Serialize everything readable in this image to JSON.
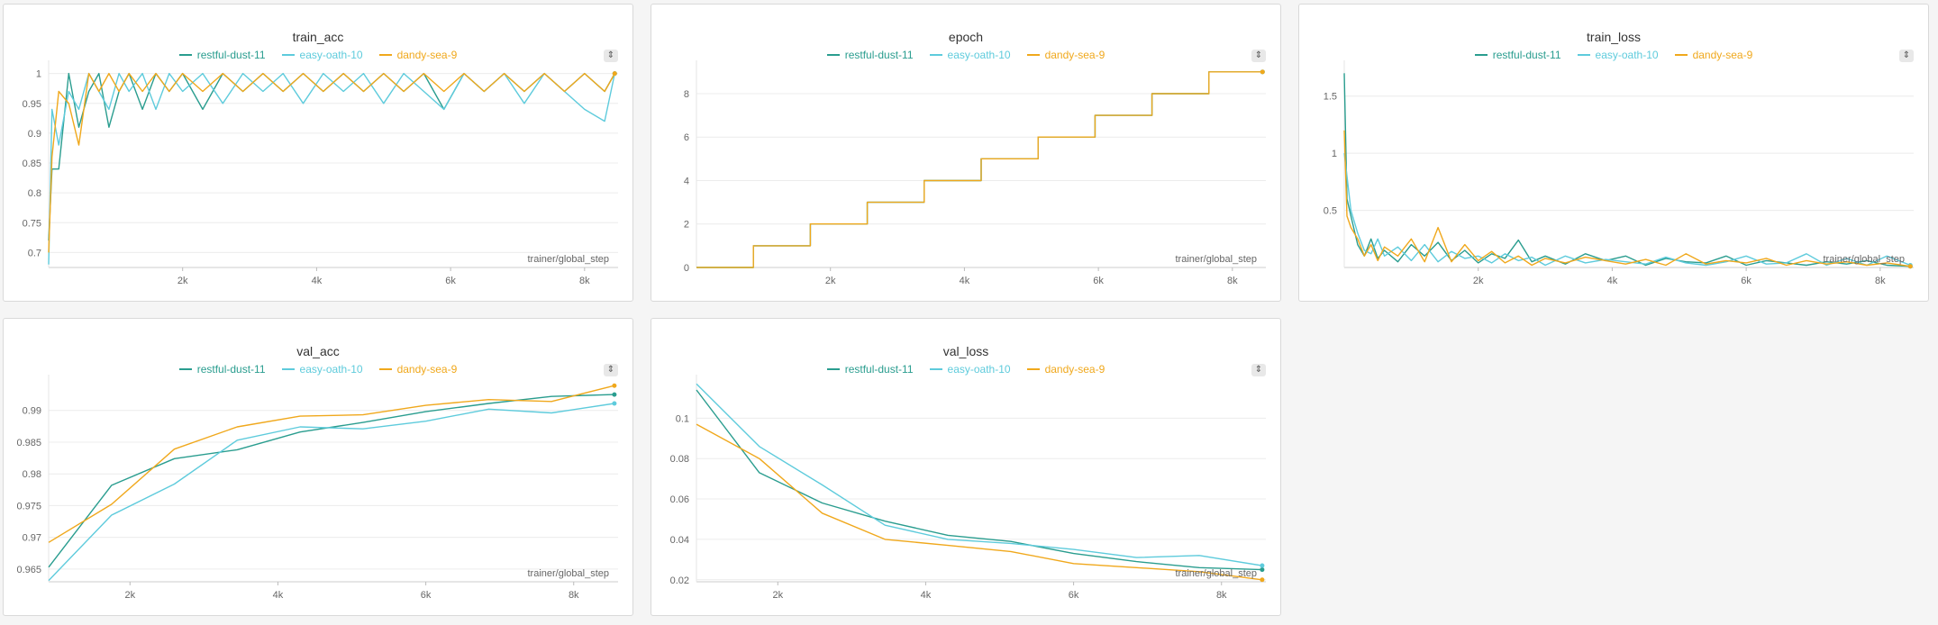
{
  "series_colors": {
    "restful-dust-11": "#2a9d8f",
    "easy-oath-10": "#5ecbdc",
    "dandy-sea-9": "#f0a81c"
  },
  "legend": [
    {
      "name": "restful-dust-11",
      "color": "#2a9d8f"
    },
    {
      "name": "easy-oath-10",
      "color": "#5ecbdc"
    },
    {
      "name": "dandy-sea-9",
      "color": "#f0a81c"
    }
  ],
  "panel_menu_icon": "chevron-updown-icon",
  "chart_data": [
    {
      "type": "line",
      "title": "train_acc",
      "xlabel": "trainer/global_step",
      "ylabel": "",
      "xlim": [
        0,
        8500
      ],
      "ylim": [
        0.675,
        1.01
      ],
      "xticks": [
        2000,
        4000,
        6000,
        8000
      ],
      "xtick_labels": [
        "2k",
        "4k",
        "6k",
        "8k"
      ],
      "yticks": [
        0.7,
        0.75,
        0.8,
        0.85,
        0.9,
        0.95,
        1
      ],
      "ytick_labels": [
        "0.7",
        "0.75",
        "0.8",
        "0.85",
        "0.9",
        "0.95",
        "1"
      ],
      "grid": true,
      "series": [
        {
          "name": "restful-dust-11",
          "x": [
            0,
            50,
            150,
            300,
            450,
            600,
            750,
            900,
            1050,
            1200,
            1400,
            1600,
            1800,
            2000,
            2300,
            2600,
            2900,
            3200,
            3500,
            3800,
            4100,
            4400,
            4700,
            5000,
            5300,
            5600,
            5900,
            6200,
            6500,
            6800,
            7100,
            7400,
            7700,
            8000,
            8300,
            8450
          ],
          "y": [
            0.72,
            0.84,
            0.84,
            1.0,
            0.91,
            0.97,
            1.0,
            0.91,
            0.97,
            1.0,
            0.94,
            1.0,
            0.97,
            1.0,
            0.94,
            1.0,
            0.97,
            1.0,
            0.97,
            1.0,
            0.97,
            1.0,
            0.97,
            1.0,
            0.97,
            1.0,
            0.94,
            1.0,
            0.97,
            1.0,
            0.97,
            1.0,
            0.97,
            1.0,
            0.97,
            1.0
          ]
        },
        {
          "name": "easy-oath-10",
          "x": [
            0,
            50,
            150,
            300,
            450,
            600,
            750,
            900,
            1050,
            1200,
            1400,
            1600,
            1800,
            2000,
            2300,
            2600,
            2900,
            3200,
            3500,
            3800,
            4100,
            4400,
            4700,
            5000,
            5300,
            5600,
            5900,
            6200,
            6500,
            6800,
            7100,
            7400,
            7700,
            8000,
            8300,
            8450
          ],
          "y": [
            0.68,
            0.94,
            0.88,
            0.97,
            0.94,
            1.0,
            0.97,
            0.94,
            1.0,
            0.97,
            1.0,
            0.94,
            1.0,
            0.97,
            1.0,
            0.95,
            1.0,
            0.97,
            1.0,
            0.95,
            1.0,
            0.97,
            1.0,
            0.95,
            1.0,
            0.97,
            0.94,
            1.0,
            0.97,
            1.0,
            0.95,
            1.0,
            0.97,
            0.94,
            0.92,
            1.0
          ]
        },
        {
          "name": "dandy-sea-9",
          "x": [
            0,
            50,
            150,
            300,
            450,
            600,
            750,
            900,
            1050,
            1200,
            1400,
            1600,
            1800,
            2000,
            2300,
            2600,
            2900,
            3200,
            3500,
            3800,
            4100,
            4400,
            4700,
            5000,
            5300,
            5600,
            5900,
            6200,
            6500,
            6800,
            7100,
            7400,
            7700,
            8000,
            8300,
            8450
          ],
          "y": [
            0.7,
            0.86,
            0.97,
            0.95,
            0.88,
            1.0,
            0.97,
            1.0,
            0.97,
            1.0,
            0.97,
            1.0,
            0.97,
            1.0,
            0.97,
            1.0,
            0.97,
            1.0,
            0.97,
            1.0,
            0.97,
            1.0,
            0.97,
            1.0,
            0.97,
            1.0,
            0.97,
            1.0,
            0.97,
            1.0,
            0.97,
            1.0,
            0.97,
            1.0,
            0.97,
            1.0
          ]
        }
      ]
    },
    {
      "type": "line",
      "title": "epoch",
      "xlabel": "trainer/global_step",
      "ylabel": "",
      "xlim": [
        0,
        8500
      ],
      "ylim": [
        0,
        9.2
      ],
      "xticks": [
        2000,
        4000,
        6000,
        8000
      ],
      "xtick_labels": [
        "2k",
        "4k",
        "6k",
        "8k"
      ],
      "yticks": [
        0,
        2,
        4,
        6,
        8
      ],
      "ytick_labels": [
        "0",
        "2",
        "4",
        "6",
        "8"
      ],
      "grid": true,
      "series": [
        {
          "name": "restful-dust-11",
          "x": [
            0,
            850,
            850,
            1700,
            1700,
            2550,
            2550,
            3400,
            3400,
            4250,
            4250,
            5100,
            5100,
            5950,
            5950,
            6800,
            6800,
            7650,
            7650,
            8450
          ],
          "y": [
            0,
            0,
            1,
            1,
            2,
            2,
            3,
            3,
            4,
            4,
            5,
            5,
            6,
            6,
            7,
            7,
            8,
            8,
            9,
            9
          ]
        },
        {
          "name": "easy-oath-10",
          "x": [
            0,
            850,
            850,
            1700,
            1700,
            2550,
            2550,
            3400,
            3400,
            4250,
            4250,
            5100,
            5100,
            5950,
            5950,
            6800,
            6800,
            7650,
            7650,
            8450
          ],
          "y": [
            0,
            0,
            1,
            1,
            2,
            2,
            3,
            3,
            4,
            4,
            5,
            5,
            6,
            6,
            7,
            7,
            8,
            8,
            9,
            9
          ]
        },
        {
          "name": "dandy-sea-9",
          "x": [
            0,
            850,
            850,
            1700,
            1700,
            2550,
            2550,
            3400,
            3400,
            4250,
            4250,
            5100,
            5100,
            5950,
            5950,
            6800,
            6800,
            7650,
            7650,
            8450
          ],
          "y": [
            0,
            0,
            1,
            1,
            2,
            2,
            3,
            3,
            4,
            4,
            5,
            5,
            6,
            6,
            7,
            7,
            8,
            8,
            9,
            9
          ]
        }
      ]
    },
    {
      "type": "line",
      "title": "train_loss",
      "xlabel": "trainer/global_step",
      "ylabel": "",
      "xlim": [
        0,
        8500
      ],
      "ylim": [
        0,
        1.75
      ],
      "xticks": [
        2000,
        4000,
        6000,
        8000
      ],
      "xtick_labels": [
        "2k",
        "4k",
        "6k",
        "8k"
      ],
      "yticks": [
        0.5,
        1,
        1.5
      ],
      "ytick_labels": [
        "0.5",
        "1",
        "1.5"
      ],
      "grid": true,
      "series": [
        {
          "name": "restful-dust-11",
          "x": [
            0,
            40,
            100,
            200,
            300,
            400,
            500,
            600,
            800,
            1000,
            1200,
            1400,
            1600,
            1800,
            2000,
            2200,
            2400,
            2600,
            2800,
            3000,
            3300,
            3600,
            3900,
            4200,
            4500,
            4800,
            5100,
            5400,
            5700,
            6000,
            6300,
            6600,
            6900,
            7200,
            7500,
            7800,
            8100,
            8450
          ],
          "y": [
            1.7,
            0.6,
            0.45,
            0.2,
            0.1,
            0.25,
            0.08,
            0.15,
            0.05,
            0.2,
            0.1,
            0.22,
            0.06,
            0.15,
            0.04,
            0.12,
            0.08,
            0.24,
            0.05,
            0.1,
            0.03,
            0.12,
            0.06,
            0.1,
            0.02,
            0.08,
            0.05,
            0.04,
            0.1,
            0.02,
            0.06,
            0.04,
            0.02,
            0.05,
            0.03,
            0.06,
            0.02,
            0.01
          ]
        },
        {
          "name": "easy-oath-10",
          "x": [
            0,
            40,
            100,
            200,
            300,
            400,
            500,
            600,
            800,
            1000,
            1200,
            1400,
            1600,
            1800,
            2000,
            2200,
            2400,
            2600,
            2800,
            3000,
            3300,
            3600,
            3900,
            4200,
            4500,
            4800,
            5100,
            5400,
            5700,
            6000,
            6300,
            6600,
            6900,
            7200,
            7500,
            7800,
            8100,
            8450
          ],
          "y": [
            1.0,
            0.8,
            0.5,
            0.3,
            0.15,
            0.12,
            0.25,
            0.1,
            0.18,
            0.06,
            0.2,
            0.05,
            0.14,
            0.08,
            0.1,
            0.04,
            0.12,
            0.06,
            0.09,
            0.02,
            0.1,
            0.04,
            0.07,
            0.05,
            0.03,
            0.09,
            0.04,
            0.02,
            0.05,
            0.1,
            0.03,
            0.04,
            0.12,
            0.02,
            0.08,
            0.02,
            0.1,
            0.02
          ]
        },
        {
          "name": "dandy-sea-9",
          "x": [
            0,
            40,
            100,
            200,
            300,
            400,
            500,
            600,
            800,
            1000,
            1200,
            1400,
            1600,
            1800,
            2000,
            2200,
            2400,
            2600,
            2800,
            3000,
            3300,
            3600,
            3900,
            4200,
            4500,
            4800,
            5100,
            5400,
            5700,
            6000,
            6300,
            6600,
            6900,
            7200,
            7500,
            7800,
            8100,
            8450
          ],
          "y": [
            1.2,
            0.45,
            0.35,
            0.25,
            0.1,
            0.2,
            0.06,
            0.18,
            0.1,
            0.25,
            0.05,
            0.35,
            0.05,
            0.2,
            0.06,
            0.14,
            0.04,
            0.1,
            0.02,
            0.08,
            0.04,
            0.09,
            0.06,
            0.03,
            0.07,
            0.02,
            0.12,
            0.03,
            0.06,
            0.04,
            0.08,
            0.02,
            0.06,
            0.03,
            0.05,
            0.02,
            0.04,
            0.01
          ]
        }
      ]
    },
    {
      "type": "line",
      "title": "val_acc",
      "xlabel": "trainer/global_step",
      "ylabel": "",
      "xlim": [
        900,
        8600
      ],
      "ylim": [
        0.963,
        0.9945
      ],
      "xticks": [
        2000,
        4000,
        6000,
        8000
      ],
      "xtick_labels": [
        "2k",
        "4k",
        "6k",
        "8k"
      ],
      "yticks": [
        0.965,
        0.97,
        0.975,
        0.98,
        0.985,
        0.99
      ],
      "ytick_labels": [
        "0.965",
        "0.97",
        "0.975",
        "0.98",
        "0.985",
        "0.99"
      ],
      "grid": true,
      "series": [
        {
          "name": "restful-dust-11",
          "x": [
            900,
            1750,
            2600,
            3450,
            4300,
            5150,
            6000,
            6850,
            7700,
            8550
          ],
          "y": [
            0.9653,
            0.9782,
            0.9824,
            0.9838,
            0.9866,
            0.9881,
            0.9898,
            0.9911,
            0.9922,
            0.9925
          ]
        },
        {
          "name": "easy-oath-10",
          "x": [
            900,
            1750,
            2600,
            3450,
            4300,
            5150,
            6000,
            6850,
            7700,
            8550
          ],
          "y": [
            0.9632,
            0.9735,
            0.9784,
            0.9853,
            0.9874,
            0.9871,
            0.9883,
            0.9902,
            0.9896,
            0.9911
          ]
        },
        {
          "name": "dandy-sea-9",
          "x": [
            900,
            1750,
            2600,
            3450,
            4300,
            5150,
            6000,
            6850,
            7700,
            8550
          ],
          "y": [
            0.9692,
            0.9752,
            0.9839,
            0.9874,
            0.9891,
            0.9893,
            0.9908,
            0.9917,
            0.9914,
            0.9939
          ]
        }
      ]
    },
    {
      "type": "line",
      "title": "val_loss",
      "xlabel": "trainer/global_step",
      "ylabel": "",
      "xlim": [
        900,
        8600
      ],
      "ylim": [
        0.019,
        0.118
      ],
      "xticks": [
        2000,
        4000,
        6000,
        8000
      ],
      "xtick_labels": [
        "2k",
        "4k",
        "6k",
        "8k"
      ],
      "yticks": [
        0.02,
        0.04,
        0.06,
        0.08,
        0.1
      ],
      "ytick_labels": [
        "0.02",
        "0.04",
        "0.06",
        "0.08",
        "0.1"
      ],
      "grid": true,
      "series": [
        {
          "name": "restful-dust-11",
          "x": [
            900,
            1750,
            2600,
            3450,
            4300,
            5150,
            6000,
            6850,
            7700,
            8550
          ],
          "y": [
            0.114,
            0.073,
            0.058,
            0.049,
            0.042,
            0.039,
            0.033,
            0.029,
            0.026,
            0.025
          ]
        },
        {
          "name": "easy-oath-10",
          "x": [
            900,
            1750,
            2600,
            3450,
            4300,
            5150,
            6000,
            6850,
            7700,
            8550
          ],
          "y": [
            0.117,
            0.086,
            0.067,
            0.047,
            0.04,
            0.038,
            0.035,
            0.031,
            0.032,
            0.027
          ]
        },
        {
          "name": "dandy-sea-9",
          "x": [
            900,
            1750,
            2600,
            3450,
            4300,
            5150,
            6000,
            6850,
            7700,
            8550
          ],
          "y": [
            0.097,
            0.08,
            0.053,
            0.04,
            0.037,
            0.034,
            0.028,
            0.026,
            0.024,
            0.02
          ]
        }
      ]
    }
  ]
}
